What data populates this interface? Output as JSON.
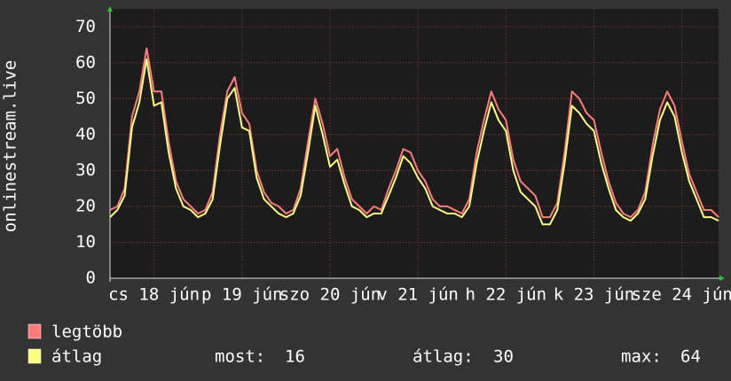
{
  "chart_data": {
    "type": "line",
    "y_label": "onlinestream.live",
    "categories": [
      null,
      null,
      null,
      null,
      null,
      null,
      "cs 18 jún",
      null,
      null,
      null,
      null,
      null,
      null,
      null,
      null,
      null,
      null,
      null,
      "p 19 jún",
      null,
      null,
      null,
      null,
      null,
      null,
      null,
      null,
      null,
      null,
      null,
      "szo 20 jún",
      null,
      null,
      null,
      null,
      null,
      null,
      null,
      null,
      null,
      null,
      null,
      "v 21 jún",
      null,
      null,
      null,
      null,
      null,
      null,
      null,
      null,
      null,
      null,
      null,
      "h 22 jún",
      null,
      null,
      null,
      null,
      null,
      null,
      null,
      null,
      null,
      null,
      null,
      "k 23 jún",
      null,
      null,
      null,
      null,
      null,
      null,
      null,
      null,
      null,
      null,
      null,
      "sze 24 jún",
      null,
      null,
      null,
      null,
      null
    ],
    "series": [
      {
        "name": "legtöbb",
        "color": "#ff7a7a",
        "values": [
          19,
          20,
          25,
          45,
          52,
          64,
          52,
          52,
          38,
          27,
          22,
          20,
          18,
          19,
          24,
          40,
          52,
          56,
          46,
          43,
          30,
          24,
          21,
          20,
          18,
          19,
          25,
          38,
          50,
          43,
          34,
          36,
          28,
          22,
          20,
          18,
          20,
          19,
          25,
          30,
          36,
          35,
          30,
          27,
          22,
          20,
          20,
          19,
          18,
          22,
          35,
          44,
          52,
          47,
          44,
          33,
          27,
          25,
          23,
          17,
          17,
          21,
          35,
          52,
          50,
          46,
          44,
          35,
          27,
          21,
          18,
          17,
          19,
          24,
          37,
          47,
          52,
          48,
          38,
          29,
          24,
          19,
          19,
          17
        ]
      },
      {
        "name": "átlag",
        "color": "#ffff80",
        "values": [
          17,
          19,
          23,
          42,
          49,
          61,
          48,
          49,
          35,
          25,
          20,
          19,
          17,
          18,
          22,
          37,
          50,
          53,
          42,
          41,
          28,
          22,
          20,
          18,
          17,
          18,
          23,
          35,
          48,
          40,
          31,
          33,
          26,
          20,
          19,
          17,
          18,
          18,
          23,
          28,
          34,
          32,
          28,
          25,
          20,
          19,
          18,
          18,
          17,
          20,
          32,
          41,
          49,
          44,
          41,
          30,
          24,
          22,
          20,
          15,
          15,
          19,
          32,
          48,
          46,
          43,
          41,
          32,
          25,
          19,
          17,
          16,
          18,
          22,
          34,
          44,
          49,
          45,
          35,
          27,
          22,
          17,
          17,
          16
        ]
      }
    ],
    "ylim": [
      0,
      75
    ],
    "yticks": [
      0,
      10,
      20,
      30,
      40,
      50,
      60,
      70
    ],
    "grid": true,
    "stats": [
      {
        "label": "most:",
        "value": 16
      },
      {
        "label": "átlag:",
        "value": 30
      },
      {
        "label": "max:",
        "value": 64
      }
    ]
  }
}
